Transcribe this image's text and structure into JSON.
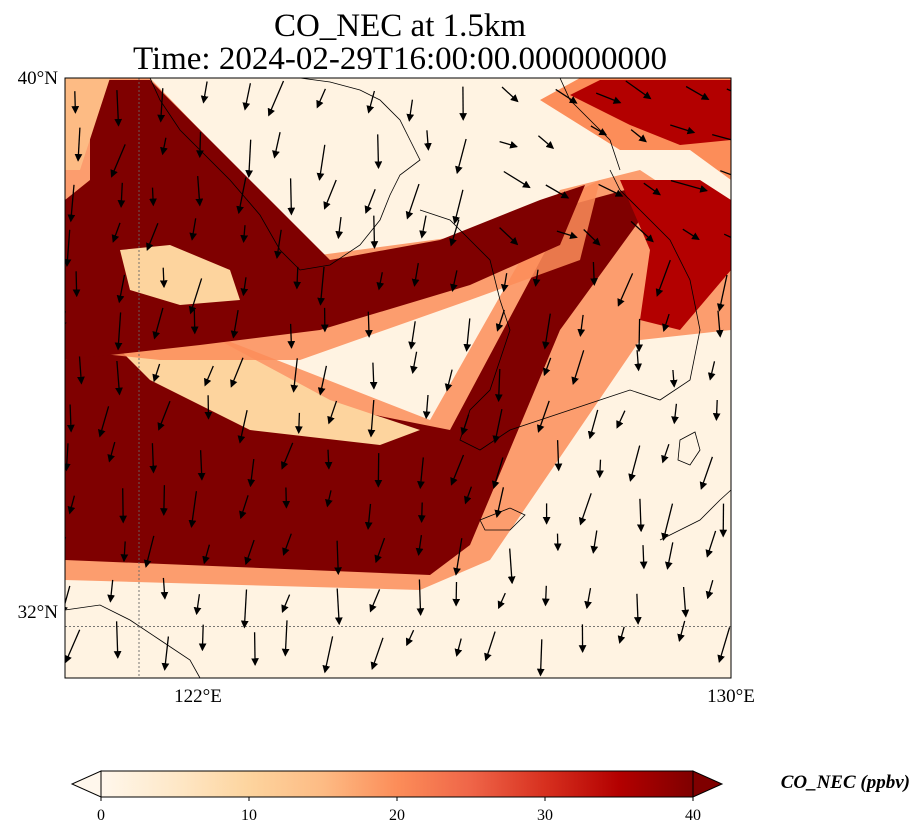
{
  "title": {
    "line1": "CO_NEC at 1.5km",
    "line2": "Time: 2024-02-29T16:00:00.000000000"
  },
  "map": {
    "lon_range": [
      121.0,
      130.0
    ],
    "lat_range": [
      31.25,
      40.0
    ],
    "gridlines": {
      "lon": 122,
      "lat": 32,
      "style": "dotted"
    },
    "x_ticks": [
      {
        "value": 122,
        "label": "122°E"
      },
      {
        "value": 130,
        "label": "130°E"
      }
    ],
    "y_ticks": [
      {
        "value": 40,
        "label": "40°N"
      },
      {
        "value": 32,
        "label": "32°N"
      }
    ],
    "field": "CO_NEC",
    "units": "ppbv",
    "features": [
      "coastlines",
      "wind-vectors"
    ],
    "high_bands": "two diagonal bands of high CO_NEC (≥40 ppbv) crossing from west to northeast"
  },
  "colorbar": {
    "label": "CO_NEC (ppbv)",
    "min": 0,
    "max": 40,
    "ticks": [
      "0",
      "10",
      "20",
      "30",
      "40"
    ],
    "colormap": "OrRd",
    "colors": [
      "#fff7ec",
      "#fee8c8",
      "#fdd49e",
      "#fdbb84",
      "#fc8d59",
      "#ef6548",
      "#d7301f",
      "#b30000",
      "#7f0000"
    ],
    "extend": "both"
  }
}
